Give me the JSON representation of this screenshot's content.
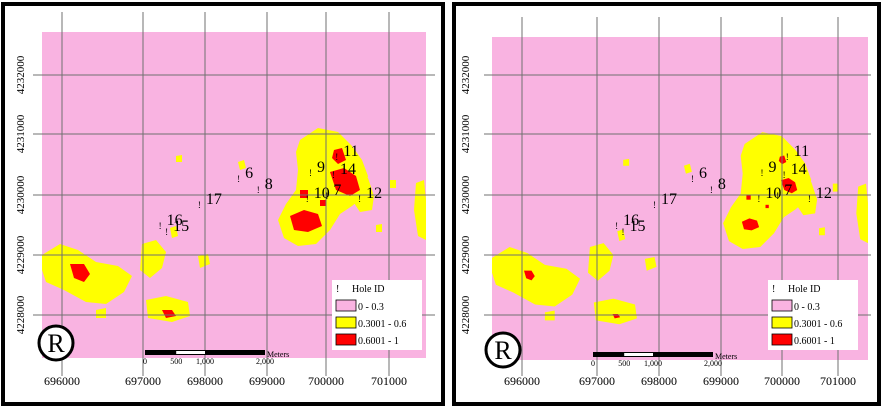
{
  "x_ticks": [
    "696000",
    "697000",
    "698000",
    "699000",
    "700000",
    "701000"
  ],
  "y_ticks": [
    "4232000",
    "4231000",
    "4230000",
    "4229000",
    "4228000"
  ],
  "legend": {
    "title": "Hole ID",
    "marker": "!",
    "classes": [
      {
        "label": "0 - 0.3",
        "color": "#f9b3e1"
      },
      {
        "label": "0.3001 - 0.6",
        "color": "#ffff00"
      },
      {
        "label": "0.6001 - 1",
        "color": "#ff0000"
      }
    ]
  },
  "scale_bar": {
    "labels": [
      "0",
      "500",
      "1,000",
      "2,000"
    ],
    "unit": "Meters"
  },
  "north_symbol": "R",
  "holes": [
    {
      "id": "11",
      "x": 700300,
      "y": 4230650
    },
    {
      "id": "9",
      "x": 699900,
      "y": 4230380
    },
    {
      "id": "14",
      "x": 700250,
      "y": 4230350
    },
    {
      "id": "6",
      "x": 698800,
      "y": 4230280
    },
    {
      "id": "7",
      "x": 700150,
      "y": 4230000
    },
    {
      "id": "8",
      "x": 699100,
      "y": 4230100
    },
    {
      "id": "12",
      "x": 700650,
      "y": 4229950
    },
    {
      "id": "10",
      "x": 699850,
      "y": 4229950
    },
    {
      "id": "17",
      "x": 698200,
      "y": 4229850
    },
    {
      "id": "16",
      "x": 697600,
      "y": 4229500
    },
    {
      "id": "15",
      "x": 697700,
      "y": 4229400
    }
  ],
  "colors": {
    "background_class": "#f9b3e1",
    "mid_class": "#ffff00",
    "high_class": "#ff0000",
    "grid": "#707070",
    "frame": "#000000"
  },
  "panels": [
    {
      "name": "left"
    },
    {
      "name": "right"
    }
  ]
}
